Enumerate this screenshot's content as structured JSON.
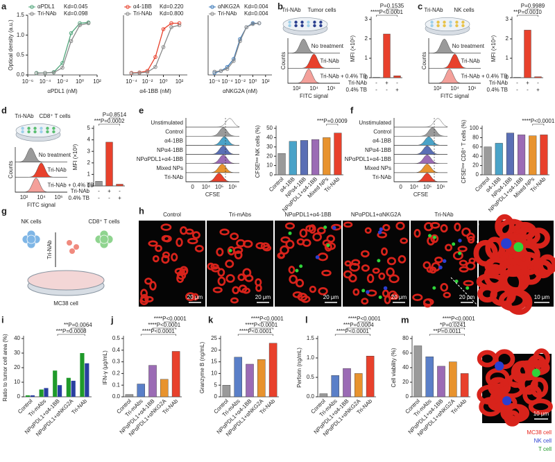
{
  "figure": {
    "panel_labels": [
      "a",
      "b",
      "c",
      "d",
      "e",
      "f",
      "g",
      "h",
      "i",
      "j",
      "k",
      "l",
      "m"
    ],
    "diagrams": {
      "b": {
        "labels": [
          "Tri-NAb",
          "Tumor cells"
        ]
      },
      "c": {
        "labels": [
          "Tri-NAb",
          "NK cells"
        ]
      },
      "d": {
        "labels": [
          "Tri-NAb",
          "CD8⁺ T cells"
        ]
      }
    },
    "flow": {
      "b": {
        "rows": [
          "No treatment",
          "Tri-NAb",
          "Tri-NAb + 0.4% TB"
        ],
        "colors": [
          "#9a9a9a",
          "#e8412c",
          "#f4a09a"
        ],
        "x_label": "FITC signal",
        "y_label": "Counts",
        "xticks": [
          "10²",
          "10⁴",
          "10⁶"
        ]
      },
      "c": {
        "rows": [
          "No treatment",
          "Tri-NAb",
          "Tri-NAb + 0.4% TB"
        ],
        "colors": [
          "#9a9a9a",
          "#e8412c",
          "#f4a09a"
        ],
        "x_label": "FITC signal",
        "y_label": "Counts",
        "xticks": [
          "10²",
          "10⁴",
          "10⁶"
        ]
      },
      "d": {
        "rows": [
          "No treatment",
          "Tri-NAb",
          "Tri-NAb + 0.4% TB"
        ],
        "colors": [
          "#9a9a9a",
          "#e8412c",
          "#f4a09a"
        ],
        "x_label": "FITC signal",
        "y_label": "Counts",
        "xticks": [
          "10²",
          "10⁴",
          "10⁶"
        ]
      },
      "e": {
        "rows": [
          "Unstimulated",
          "Control",
          "α4-1BB",
          "NPα4-1BB",
          "NPαPDL1+α4-1BB",
          "Mixed NPs",
          "Tri-NAb"
        ],
        "colors": [
          "#ffffff",
          "#9a9a9a",
          "#4aa3c8",
          "#5a6fb5",
          "#9b6bb5",
          "#e8932e",
          "#e8412c"
        ],
        "x_label": "CFSE",
        "xticks": [
          "0",
          "10⁴",
          "10⁵",
          "10⁶"
        ]
      },
      "f": {
        "rows": [
          "Unstimulated",
          "Control",
          "α4-1BB",
          "NPα4-1BB",
          "NPαPDL1+α4-1BB",
          "Mixed NPs",
          "Tri-NAb"
        ],
        "colors": [
          "#ffffff",
          "#9a9a9a",
          "#4aa3c8",
          "#5a6fb5",
          "#9b6bb5",
          "#e8932e",
          "#e8412c"
        ],
        "x_label": "CFSE",
        "xticks": [
          "0",
          "10⁴",
          "10⁵",
          "10⁶"
        ]
      }
    },
    "g": {
      "labels": [
        "NK cells",
        "CD8⁺ T cells",
        "Tri-NAb",
        "MC38 cell"
      ]
    },
    "h": {
      "titles": [
        "Control",
        "Tri-mAbs",
        "NPαPDL1+α4-1BB",
        "NPαPDL1+αNKG2A",
        "Tri-NAb"
      ],
      "scale_bars": [
        "20 μm",
        "20 μm",
        "20 μm",
        "20 μm",
        "20 μm",
        "10 μm"
      ]
    },
    "m_image": {
      "scale_bar": "10 μm",
      "legend": [
        {
          "label": "MC38 cell",
          "color": "#e8251c"
        },
        {
          "label": "NK cell",
          "color": "#2a3fd0"
        },
        {
          "label": "T cell",
          "color": "#1f9a2a"
        }
      ]
    }
  },
  "chart_data": [
    {
      "type": "line",
      "x_label": "αPDL1 (nM)",
      "y_label": "Optical density (a.u.)",
      "log_x": true,
      "xlim": [
        1e-06,
        100
      ],
      "xticks": [
        {
          "value": 1e-06,
          "label": "10⁻⁶"
        },
        {
          "value": 0.0001,
          "label": "10⁻⁴"
        },
        {
          "value": 0.01,
          "label": "10⁻²"
        },
        {
          "value": 1,
          "label": "10⁰"
        },
        {
          "value": 100,
          "label": "10²"
        }
      ],
      "ylim": [
        0,
        1.5
      ],
      "yticks": [
        {
          "value": 0,
          "label": "0.0"
        },
        0.5,
        {
          "value": 1,
          "label": "1.0"
        },
        1.5
      ],
      "x": [
        1e-05,
        0.0001,
        0.001,
        0.01,
        0.1,
        1,
        10
      ],
      "series": [
        {
          "name": "αPDL1",
          "kd_label": "Kd=0.045",
          "color": "#4fa57a",
          "values": [
            0.05,
            0.05,
            0.07,
            0.3,
            1.05,
            1.3,
            1.32
          ]
        },
        {
          "name": "Tri-NAb",
          "kd_label": "Kd=0.098",
          "color": "#8a8a8a",
          "values": [
            0.04,
            0.05,
            0.06,
            0.18,
            0.85,
            1.25,
            1.3
          ]
        }
      ]
    },
    {
      "type": "line",
      "x_label": "α4-1BB (nM)",
      "log_x": true,
      "xlim": [
        1e-05,
        1000
      ],
      "xticks": [
        {
          "value": 0.0001,
          "label": "10⁻⁴"
        },
        {
          "value": 0.01,
          "label": "10⁻²"
        },
        {
          "value": 1,
          "label": "10⁰"
        },
        {
          "value": 100,
          "label": "10²"
        }
      ],
      "ylim": [
        0,
        1.5
      ],
      "x": [
        0.0001,
        0.001,
        0.01,
        0.1,
        1,
        10,
        100
      ],
      "series": [
        {
          "name": "α4-1BB",
          "kd_label": "Kd=0.220",
          "color": "#e8412c",
          "values": [
            0.05,
            0.06,
            0.1,
            0.45,
            1.15,
            1.3,
            1.3
          ]
        },
        {
          "name": "Tri-NAb",
          "kd_label": "Kd=0.800",
          "color": "#8a8a8a",
          "values": [
            0.04,
            0.05,
            0.07,
            0.2,
            0.7,
            1.2,
            1.25
          ]
        }
      ]
    },
    {
      "type": "line",
      "x_label": "αNKG2A (nM)",
      "log_x": true,
      "xlim": [
        1e-07,
        1000
      ],
      "xticks": [
        {
          "value": 1e-06,
          "label": "10⁻⁶"
        },
        {
          "value": 0.0001,
          "label": "10⁻⁴"
        },
        {
          "value": 0.01,
          "label": "10⁻²"
        },
        {
          "value": 1,
          "label": "10⁰"
        },
        {
          "value": 100,
          "label": "10²"
        }
      ],
      "ylim": [
        0,
        1.5
      ],
      "x": [
        1e-06,
        1e-05,
        0.0001,
        0.001,
        0.01,
        0.1,
        1,
        10
      ],
      "series": [
        {
          "name": "αNKG2A",
          "kd_label": "Kd=0.004",
          "color": "#3a78b8",
          "values": [
            0.05,
            0.1,
            0.2,
            0.4,
            0.9,
            1.2,
            1.3,
            1.3
          ]
        },
        {
          "name": "Tri-NAb",
          "kd_label": "Kd=0.004",
          "color": "#8a8a8a",
          "values": [
            0.08,
            0.1,
            0.15,
            0.35,
            0.85,
            1.2,
            1.28,
            1.3
          ]
        }
      ]
    },
    {
      "type": "bar",
      "y_label": "MFI (×10⁵)",
      "ylim": [
        0,
        3
      ],
      "yticks": [
        0,
        1,
        2,
        3
      ],
      "condition_rows": [
        {
          "label": "Tri-NAb",
          "signs": [
            "-",
            "+",
            "-"
          ]
        },
        {
          "label": "0.4% TB",
          "signs": [
            "-",
            "-",
            "+"
          ]
        }
      ],
      "values": [
        0.02,
        2.25,
        0.1
      ],
      "colors": [
        "#9a9a9a",
        "#e8412c",
        "#e8412c"
      ],
      "annotations": [
        "P=0.1535",
        "****P<0.0001"
      ]
    },
    {
      "type": "bar",
      "y_label": "MFI (×10⁴)",
      "ylim": [
        0,
        3
      ],
      "yticks": [
        0,
        1,
        2,
        3
      ],
      "condition_rows": [
        {
          "label": "Tri-NAb",
          "signs": [
            "-",
            "+",
            "-"
          ]
        },
        {
          "label": "0.4% TB",
          "signs": [
            "-",
            "-",
            "+"
          ]
        }
      ],
      "values": [
        0.02,
        2.45,
        0.05
      ],
      "colors": [
        "#9a9a9a",
        "#e8412c",
        "#e8412c"
      ],
      "annotations": [
        "P=0.9989",
        "**P=0.0010"
      ]
    },
    {
      "type": "bar",
      "y_label": "MFI (×10³)",
      "ylim": [
        0,
        5
      ],
      "yticks": [
        0,
        1,
        2,
        3,
        4,
        5
      ],
      "condition_rows": [
        {
          "label": "Tri-NAb",
          "signs": [
            "-",
            "+",
            "-"
          ]
        },
        {
          "label": "0.4% TB",
          "signs": [
            "-",
            "-",
            "+"
          ]
        }
      ],
      "values": [
        0.4,
        3.8,
        0.15
      ],
      "colors": [
        "#9a9a9a",
        "#e8412c",
        "#e8412c"
      ],
      "annotations": [
        "P=0.8514",
        "***P=0.0002"
      ]
    },
    {
      "type": "bar",
      "y_label": "CFSEˡᵒʷ NK cells (%)",
      "ylim": [
        0,
        50
      ],
      "yticks": [
        0,
        10,
        20,
        30,
        40,
        50
      ],
      "categories": [
        "Control",
        "α4-1BB",
        "NPα4-1BB",
        "NPαPDL1+α4-1BB",
        "Mixed NPs",
        "Tri-NAb"
      ],
      "values": [
        23,
        36,
        37,
        38,
        40,
        45
      ],
      "colors": [
        "#9a9a9a",
        "#4aa3c8",
        "#5a6fb5",
        "#9b6bb5",
        "#e8932e",
        "#e8412c"
      ],
      "annotations": [
        "***P=0.0009"
      ]
    },
    {
      "type": "bar",
      "y_label": "CFSEˡᵒʷ CD8⁺ T cells (%)",
      "ylim": [
        0,
        100
      ],
      "yticks": [
        0,
        20,
        40,
        60,
        80,
        100
      ],
      "categories": [
        "Control",
        "α4-1BB",
        "NPα4-1BB",
        "NPαPDL1+α4-1BB",
        "Mixed NPs",
        "Tri-NAb"
      ],
      "values": [
        60,
        68,
        90,
        86,
        84,
        86
      ],
      "colors": [
        "#9a9a9a",
        "#4aa3c8",
        "#5a6fb5",
        "#9b6bb5",
        "#e8932e",
        "#e8412c"
      ],
      "annotations": [
        "****P<0.0001"
      ]
    },
    {
      "type": "grouped_bar",
      "y_label": "Ratio to tumor cell area (%)",
      "ylim": [
        0,
        40
      ],
      "yticks": [
        0,
        10,
        20,
        30,
        40
      ],
      "categories": [
        "Control",
        "Tri-mAbs",
        "NPαPDL1+α4-1BB",
        "NPαPDL1+αNKG2A",
        "Tri-NAb"
      ],
      "series": [
        {
          "color": "#1f9a2a",
          "values": [
            1,
            5,
            18,
            13,
            30
          ]
        },
        {
          "color": "#2a3fa0",
          "values": [
            1,
            6,
            8,
            11,
            23
          ]
        }
      ],
      "annotations": [
        "**P=0.0064",
        "***P=0.0008"
      ]
    },
    {
      "type": "bar",
      "y_label": "IFN-γ (μg/mL)",
      "ylim": [
        0,
        0.5
      ],
      "yticks": [
        {
          "value": 0,
          "label": "0.0"
        },
        0.1,
        0.2,
        0.3,
        0.4,
        0.5
      ],
      "categories": [
        "Control",
        "Tri-mAbs",
        "NPαPDL1+α4-1BB",
        "NPαPDL1+αNKG2A",
        "Tri-NAb"
      ],
      "values": [
        0.02,
        0.11,
        0.27,
        0.15,
        0.39
      ],
      "colors": [
        "#9a9a9a",
        "#5a7fc8",
        "#9b6bb5",
        "#e8932e",
        "#e8412c"
      ],
      "annotations": [
        "****P<0.0001",
        "****P<0.0001",
        "****P<0.0001"
      ]
    },
    {
      "type": "bar",
      "y_label": "Granzyme B (ng/mL)",
      "ylim": [
        0,
        25
      ],
      "yticks": [
        0,
        5,
        10,
        15,
        20,
        25
      ],
      "categories": [
        "Control",
        "Tri-mAbs",
        "NPαPDL1+α4-1BB",
        "NPαPDL1+αNKG2A",
        "Tri-NAb"
      ],
      "values": [
        5,
        17,
        14,
        16,
        23
      ],
      "colors": [
        "#9a9a9a",
        "#5a7fc8",
        "#9b6bb5",
        "#e8932e",
        "#e8412c"
      ],
      "annotations": [
        "****P<0.0001",
        "****P<0.0001",
        "****P<0.0001"
      ]
    },
    {
      "type": "bar",
      "y_label": "Perforin (ng/mL)",
      "ylim": [
        0,
        1.5
      ],
      "yticks": [
        {
          "value": 0,
          "label": "0.0"
        },
        0.5,
        {
          "value": 1,
          "label": "1.0"
        },
        1.5
      ],
      "categories": [
        "Control",
        "Tri-mAbs",
        "NPαPDL1+α4-1BB",
        "NPαPDL1+αNKG2A",
        "Tri-NAb"
      ],
      "values": [
        0.08,
        0.55,
        0.73,
        0.6,
        1.05
      ],
      "colors": [
        "#9a9a9a",
        "#5a7fc8",
        "#9b6bb5",
        "#e8932e",
        "#e8412c"
      ],
      "annotations": [
        "****P<0.0001",
        "***P=0.0004",
        "****P<0.0001"
      ]
    },
    {
      "type": "bar",
      "y_label": "Cell viability (%)",
      "ylim": [
        0,
        80
      ],
      "yticks": [
        0,
        20,
        40,
        60,
        80
      ],
      "categories": [
        "Control",
        "Tri-mAbs",
        "NPαPDL1+α4-1BB",
        "NPαPDL1+αNKG2A",
        "Tri-NAb"
      ],
      "values": [
        70,
        55,
        42,
        48,
        32
      ],
      "colors": [
        "#9a9a9a",
        "#5a7fc8",
        "#9b6bb5",
        "#e8932e",
        "#e8412c"
      ],
      "annotations": [
        "****P<0.0001",
        "*P=0.0241",
        "**P=0.0011"
      ]
    }
  ]
}
